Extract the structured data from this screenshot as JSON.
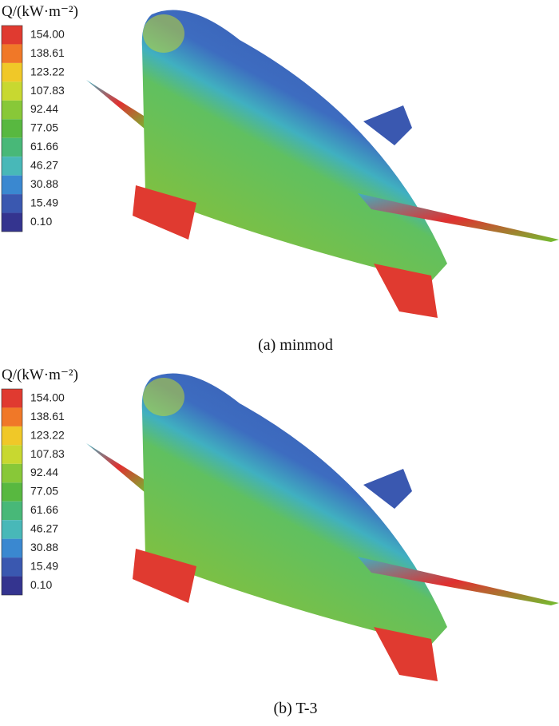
{
  "panels": [
    {
      "legend_title": "Q/(kW·m⁻²)",
      "levels": [
        "154.00",
        "138.61",
        "123.22",
        "107.83",
        "92.44",
        "77.05",
        "61.66",
        "46.27",
        "30.88",
        "15.49",
        "0.10"
      ],
      "caption": "(a) minmod"
    },
    {
      "legend_title": "Q/(kW·m⁻²)",
      "levels": [
        "154.00",
        "138.61",
        "123.22",
        "107.83",
        "92.44",
        "77.05",
        "61.66",
        "46.27",
        "30.88",
        "15.49",
        "0.10"
      ],
      "caption": "(b)  T-3"
    }
  ]
}
